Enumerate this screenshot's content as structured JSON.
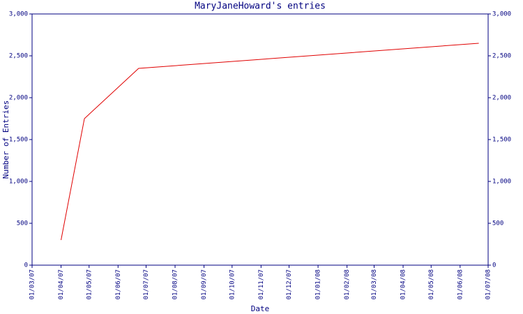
{
  "chart_data": {
    "type": "line",
    "title": "MaryJaneHoward's entries",
    "x_label": "Date",
    "y_label": "Number of Entries",
    "x": [
      "01/04/07",
      "26/04/07",
      "23/06/07",
      "21/06/08"
    ],
    "series": [
      {
        "name": "entries",
        "color": "#e00000",
        "values": [
          300,
          1750,
          2350,
          2650
        ]
      }
    ],
    "xlim": [
      "01/03/07",
      "01/07/08"
    ],
    "xticks": [
      "01/03/07",
      "01/04/07",
      "01/05/07",
      "01/06/07",
      "01/07/07",
      "01/08/07",
      "01/09/07",
      "01/10/07",
      "01/11/07",
      "01/12/07",
      "01/01/08",
      "01/02/08",
      "01/03/08",
      "01/04/08",
      "01/05/08",
      "01/06/08",
      "01/07/08"
    ],
    "ylim": [
      0,
      3000
    ],
    "yticks": [
      0,
      500,
      {
        "value": 1000,
        "label": "1,000"
      },
      {
        "value": 1500,
        "label": "1,500"
      },
      {
        "value": 2000,
        "label": "2,000"
      },
      {
        "value": 2500,
        "label": "2,500"
      },
      {
        "value": 3000,
        "label": "3,000"
      }
    ],
    "axis_color": "#000080"
  }
}
